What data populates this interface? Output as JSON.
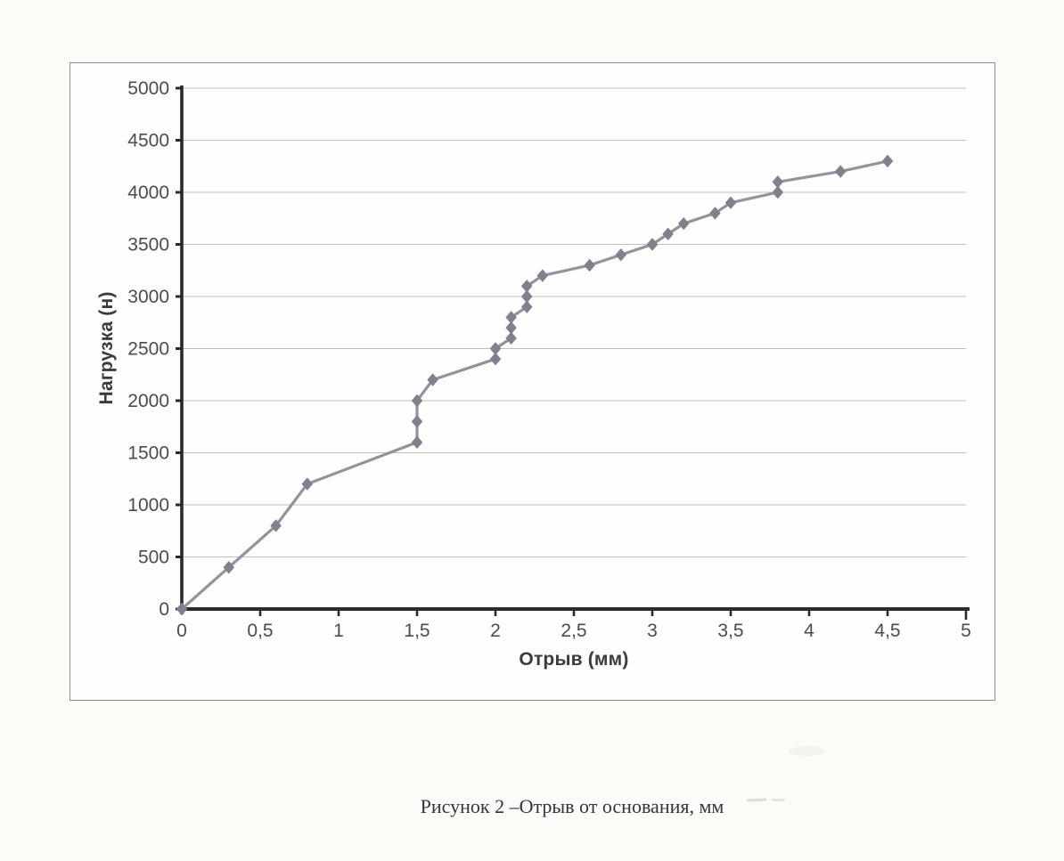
{
  "figure": {
    "caption": "Рисунок 2 –Отрыв от основания, мм"
  },
  "colors": {
    "axis": "#2a2933",
    "grid": "#bfbebe",
    "tick_text": "#4c4b51",
    "series_line": "#97919e",
    "series_marker": "#847e8e",
    "frame_border": "#8d8d8d",
    "page_background": "#fbfbf8"
  },
  "chart_data": {
    "type": "line",
    "title": "",
    "xlabel": "Отрыв (мм)",
    "ylabel": "Нагрузка (н)",
    "xlim": [
      0,
      5
    ],
    "ylim": [
      0,
      5000
    ],
    "grid": true,
    "legend": false,
    "marker": "diamond",
    "x_ticks": [
      {
        "value": 0,
        "label": "0"
      },
      {
        "value": 0.5,
        "label": "0,5"
      },
      {
        "value": 1,
        "label": "1"
      },
      {
        "value": 1.5,
        "label": "1,5"
      },
      {
        "value": 2,
        "label": "2"
      },
      {
        "value": 2.5,
        "label": "2,5"
      },
      {
        "value": 3,
        "label": "3"
      },
      {
        "value": 3.5,
        "label": "3,5"
      },
      {
        "value": 4,
        "label": "4"
      },
      {
        "value": 4.5,
        "label": "4,5"
      },
      {
        "value": 5,
        "label": "5"
      }
    ],
    "y_ticks": [
      {
        "value": 0,
        "label": "0"
      },
      {
        "value": 500,
        "label": "500"
      },
      {
        "value": 1000,
        "label": "1000"
      },
      {
        "value": 1500,
        "label": "1500"
      },
      {
        "value": 2000,
        "label": "2000"
      },
      {
        "value": 2500,
        "label": "2500"
      },
      {
        "value": 3000,
        "label": "3000"
      },
      {
        "value": 3500,
        "label": "3500"
      },
      {
        "value": 4000,
        "label": "4000"
      },
      {
        "value": 4500,
        "label": "4500"
      },
      {
        "value": 5000,
        "label": "5000"
      }
    ],
    "series": [
      {
        "name": "Отрыв от основания",
        "points": [
          [
            0,
            0
          ],
          [
            0.3,
            400
          ],
          [
            0.6,
            800
          ],
          [
            0.8,
            1200
          ],
          [
            1.5,
            1600
          ],
          [
            1.5,
            1800
          ],
          [
            1.5,
            2000
          ],
          [
            1.6,
            2200
          ],
          [
            2.0,
            2400
          ],
          [
            2.0,
            2500
          ],
          [
            2.1,
            2600
          ],
          [
            2.1,
            2700
          ],
          [
            2.1,
            2800
          ],
          [
            2.2,
            2900
          ],
          [
            2.2,
            3000
          ],
          [
            2.2,
            3100
          ],
          [
            2.3,
            3200
          ],
          [
            2.6,
            3300
          ],
          [
            2.8,
            3400
          ],
          [
            3.0,
            3500
          ],
          [
            3.1,
            3600
          ],
          [
            3.2,
            3700
          ],
          [
            3.4,
            3800
          ],
          [
            3.5,
            3900
          ],
          [
            3.8,
            4000
          ],
          [
            3.8,
            4100
          ],
          [
            4.2,
            4200
          ],
          [
            4.5,
            4300
          ]
        ]
      }
    ]
  }
}
